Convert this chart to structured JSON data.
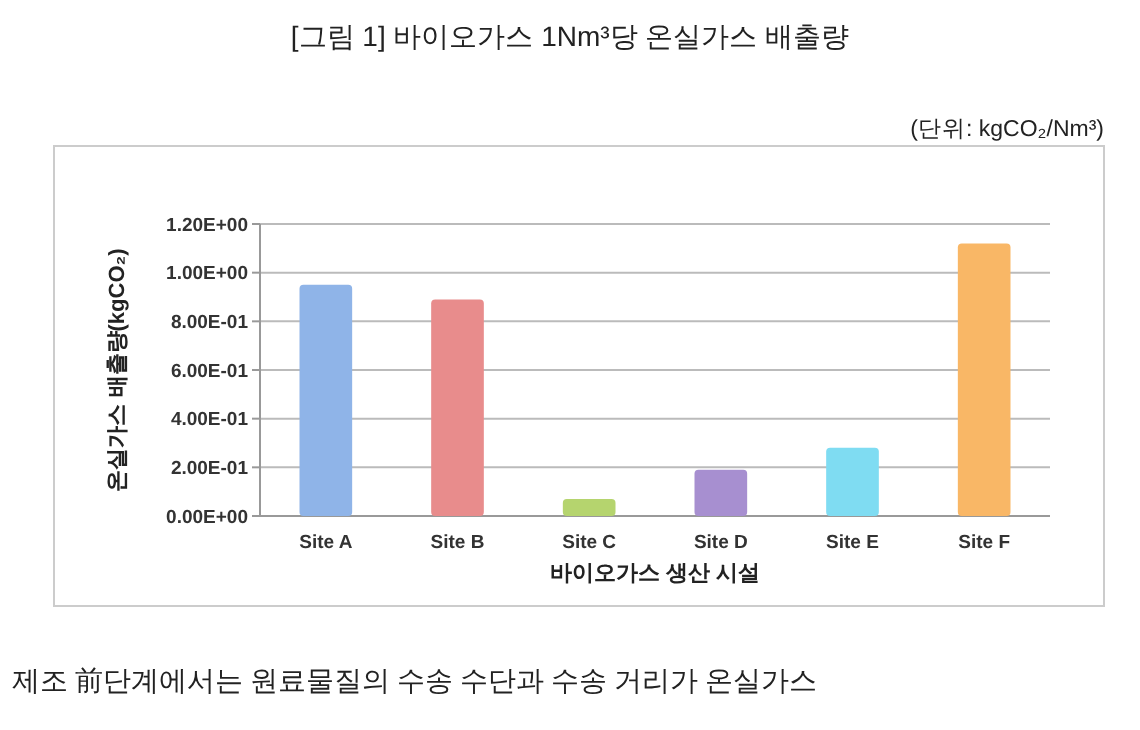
{
  "chart_data": {
    "type": "bar",
    "title": "[그림 1] 바이오가스 1Nm³당 온실가스 배출량",
    "subtitle": "(단위: kgCO₂/Nm³)",
    "xlabel": "바이오가스 생산 시설",
    "ylabel": "온실가스 배출량(kgCO₂)",
    "categories": [
      "Site A",
      "Site B",
      "Site C",
      "Site D",
      "Site E",
      "Site F"
    ],
    "values": [
      0.95,
      0.89,
      0.07,
      0.19,
      0.28,
      1.12
    ],
    "colors": [
      "#8fb4e8",
      "#e88c8c",
      "#b5d46e",
      "#a78fd0",
      "#7fdcf2",
      "#f9b766"
    ],
    "ylim": [
      0,
      1.2
    ],
    "yticks": [
      {
        "value": 0,
        "label": "0.00E+00"
      },
      {
        "value": 0.2,
        "label": "2.00E-01"
      },
      {
        "value": 0.4,
        "label": "4.00E-01"
      },
      {
        "value": 0.6,
        "label": "6.00E-01"
      },
      {
        "value": 0.8,
        "label": "8.00E-01"
      },
      {
        "value": 1.0,
        "label": "1.00E+00"
      },
      {
        "value": 1.2,
        "label": "1.20E+00"
      }
    ],
    "grid": "y",
    "annotations": [
      "제조 前단계에서는 원료물질의 수송 수단과 수송 거리가 온실가스"
    ]
  }
}
